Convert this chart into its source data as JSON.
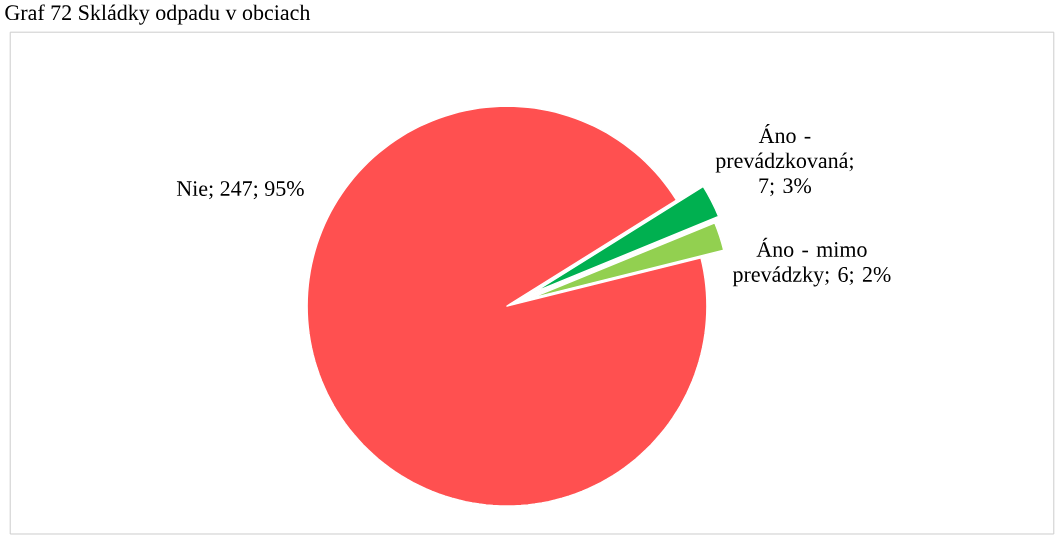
{
  "chart_data": {
    "type": "pie",
    "title": "Graf 72 Skládky odpadu v obciach",
    "categories": [
      "Nie",
      "Áno - prevádzkovaná",
      "Áno - mimo prevádzky"
    ],
    "values": [
      247,
      7,
      6
    ],
    "value_labels": [
      "; 247; 95%",
      "; 7; 3%",
      ";  6; 2%"
    ],
    "colors": [
      "#ff5050",
      "#00b050",
      "#92d050"
    ]
  }
}
